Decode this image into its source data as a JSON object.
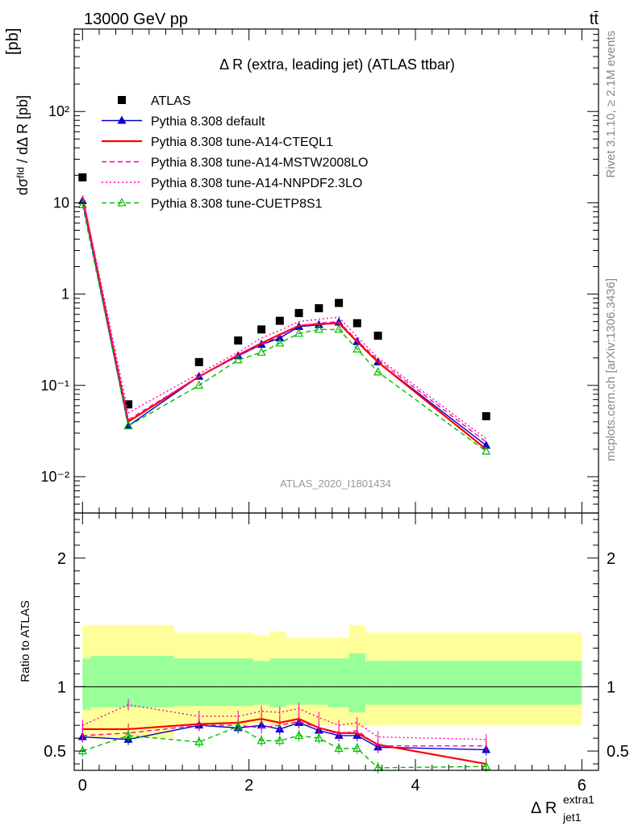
{
  "header": {
    "left": "13000 GeV pp",
    "right": "tt̄",
    "side_top": "Rivet 3.1.10, ≥ 2.1M events",
    "side_bottom": "mcplots.cern.ch [arXiv:1306.3436]",
    "watermark": "ATLAS_2020_I1801434"
  },
  "chart_data": {
    "type": "line",
    "title": "Δ R (extra, leading jet) (ATLAS ttbar)",
    "ylabel": "dσᶠᴵᵈ / dΔ R [pb]",
    "ratio_ylabel": "Ratio to ATLAS",
    "xlabel": "Δ R",
    "xlabel_sup": "extra1",
    "xlabel_sub": "jet1",
    "ylabel_main": "[pb]",
    "xlim": [
      -0.1,
      6.2
    ],
    "ylim": [
      0.004,
      800
    ],
    "ratio_ylim": [
      0.35,
      2.35
    ],
    "log_y": true,
    "x_ticks": [
      "0",
      "2",
      "4",
      "6"
    ],
    "y_ticks": [
      "10⁻²",
      "10⁻¹",
      "1",
      "10",
      "10²"
    ],
    "ratio_ticks": [
      "0.5",
      "1",
      "2"
    ],
    "x": [
      0.0,
      0.55,
      1.4,
      1.87,
      2.15,
      2.37,
      2.6,
      2.84,
      3.08,
      3.3,
      3.55,
      4.85
    ],
    "bins": [
      [
        0.0,
        0.1
      ],
      [
        0.1,
        1.1
      ],
      [
        1.1,
        1.65
      ],
      [
        1.65,
        2.05
      ],
      [
        2.05,
        2.25
      ],
      [
        2.25,
        2.45
      ],
      [
        2.45,
        2.7
      ],
      [
        2.7,
        2.95
      ],
      [
        2.95,
        3.2
      ],
      [
        3.2,
        3.4
      ],
      [
        3.4,
        3.7
      ],
      [
        3.7,
        6.0
      ]
    ],
    "band_inner": [
      0.82,
      0.84,
      0.85,
      0.85,
      0.86,
      0.84,
      0.86,
      0.86,
      0.84,
      0.8,
      0.86,
      0.86
    ],
    "band_inner_hi": [
      1.22,
      1.24,
      1.22,
      1.22,
      1.2,
      1.22,
      1.22,
      1.22,
      1.22,
      1.26,
      1.2,
      1.2
    ],
    "band_outer_lo": [
      0.6,
      0.6,
      0.7,
      0.7,
      0.72,
      0.7,
      0.7,
      0.7,
      0.7,
      0.68,
      0.7,
      0.7
    ],
    "band_outer_hi": [
      1.48,
      1.48,
      1.42,
      1.42,
      1.4,
      1.43,
      1.38,
      1.38,
      1.38,
      1.48,
      1.42,
      1.42
    ],
    "series": [
      {
        "name": "ATLAS",
        "color": "#000000",
        "style": "data",
        "values": [
          19,
          0.062,
          0.18,
          0.31,
          0.41,
          0.51,
          0.62,
          0.7,
          0.8,
          0.48,
          0.35,
          0.046
        ],
        "ratio": [
          1,
          1,
          1,
          1,
          1,
          1,
          1,
          1,
          1,
          1,
          1,
          1
        ]
      },
      {
        "name": "Pythia 8.308 default",
        "color": "#0000cc",
        "style": "solid-triangle",
        "values": [
          10.5,
          0.036,
          0.125,
          0.21,
          0.28,
          0.33,
          0.44,
          0.46,
          0.49,
          0.3,
          0.18,
          0.022
        ],
        "ratio": [
          0.61,
          0.59,
          0.7,
          0.68,
          0.7,
          0.67,
          0.72,
          0.66,
          0.62,
          0.62,
          0.53,
          0.51
        ]
      },
      {
        "name": "Pythia 8.308 tune-A14-CTEQL1",
        "color": "#ff0000",
        "style": "solid",
        "values": [
          11.5,
          0.04,
          0.125,
          0.215,
          0.29,
          0.36,
          0.45,
          0.47,
          0.48,
          0.3,
          0.18,
          0.02
        ],
        "ratio": [
          0.67,
          0.67,
          0.71,
          0.72,
          0.75,
          0.72,
          0.75,
          0.68,
          0.64,
          0.64,
          0.55,
          0.4
        ]
      },
      {
        "name": "Pythia 8.308 tune-A14-MSTW2008LO",
        "color": "#ff00aa",
        "style": "dashed",
        "values": [
          11.0,
          0.042,
          0.125,
          0.215,
          0.28,
          0.35,
          0.45,
          0.48,
          0.5,
          0.31,
          0.19,
          0.024
        ],
        "ratio": [
          0.62,
          0.64,
          0.7,
          0.7,
          0.68,
          0.7,
          0.73,
          0.68,
          0.63,
          0.66,
          0.54,
          0.54
        ]
      },
      {
        "name": "Pythia 8.308 tune-A14-NNPDF2.3LO",
        "color": "#ff00aa",
        "style": "dotted",
        "values": [
          12.0,
          0.05,
          0.135,
          0.23,
          0.33,
          0.4,
          0.5,
          0.53,
          0.56,
          0.34,
          0.2,
          0.026
        ],
        "ratio": [
          0.7,
          0.86,
          0.77,
          0.77,
          0.81,
          0.8,
          0.83,
          0.76,
          0.7,
          0.72,
          0.61,
          0.59
        ]
      },
      {
        "name": "Pythia 8.308 tune-CUETP8S1",
        "color": "#00bb00",
        "style": "dashed-open-triangle",
        "values": [
          9.5,
          0.036,
          0.1,
          0.19,
          0.23,
          0.29,
          0.37,
          0.41,
          0.41,
          0.25,
          0.14,
          0.019
        ],
        "ratio": [
          0.5,
          0.62,
          0.57,
          0.69,
          0.58,
          0.58,
          0.62,
          0.6,
          0.52,
          0.52,
          0.37,
          0.38
        ]
      }
    ]
  }
}
